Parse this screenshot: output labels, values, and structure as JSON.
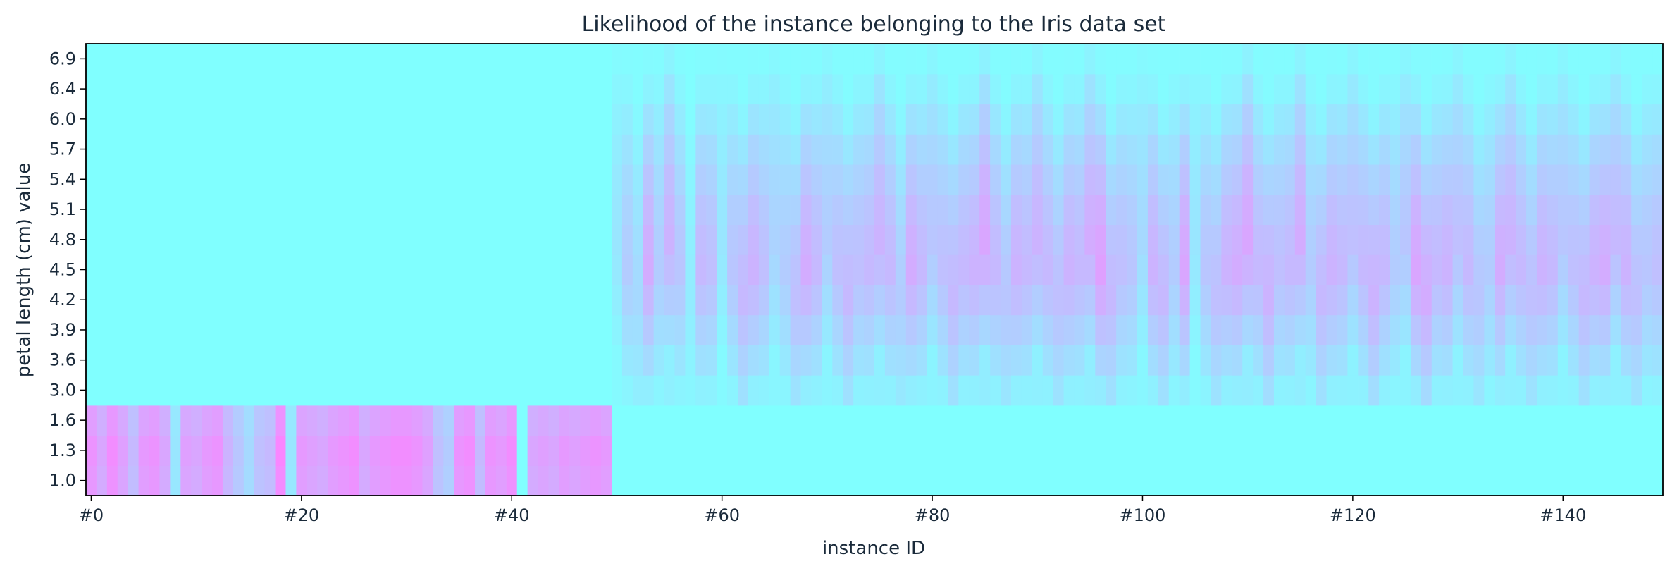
{
  "chart_data": {
    "type": "heatmap",
    "title": "Likelihood of the instance belonging to the Iris data set",
    "xlabel": "instance ID",
    "ylabel": "petal length (cm) value",
    "x_count": 150,
    "x_tick_labels": [
      {
        "index": 0,
        "label": "#0"
      },
      {
        "index": 20,
        "label": "#20"
      },
      {
        "index": 40,
        "label": "#40"
      },
      {
        "index": 60,
        "label": "#60"
      },
      {
        "index": 80,
        "label": "#80"
      },
      {
        "index": 100,
        "label": "#100"
      },
      {
        "index": 120,
        "label": "#120"
      },
      {
        "index": 140,
        "label": "#140"
      }
    ],
    "y_tick_labels": [
      "1.0",
      "1.3",
      "1.6",
      "3.0",
      "3.6",
      "3.9",
      "4.2",
      "4.5",
      "4.8",
      "5.1",
      "5.4",
      "5.7",
      "6.0",
      "6.4",
      "6.9"
    ],
    "colormap": {
      "low": "#80ffff",
      "high": "#ff80ff",
      "name": "cool"
    },
    "grid": false,
    "regions": [
      {
        "instances": [
          0,
          49
        ],
        "petal_length_range": [
          1.0,
          1.9
        ],
        "likelihood": "high"
      },
      {
        "instances": [
          50,
          149
        ],
        "petal_length_range": [
          3.0,
          6.9
        ],
        "likelihood": "high"
      }
    ],
    "instance_peak_likelihood": [
      0.85,
      0.7,
      0.9,
      0.75,
      0.55,
      0.8,
      0.85,
      0.7,
      0.2,
      0.75,
      0.7,
      0.8,
      0.85,
      0.6,
      0.45,
      0.3,
      0.5,
      0.55,
      0.95,
      0.2,
      0.8,
      0.75,
      0.7,
      0.8,
      0.85,
      0.9,
      0.7,
      0.8,
      0.85,
      0.9,
      0.9,
      0.85,
      0.75,
      0.5,
      0.4,
      0.85,
      0.9,
      0.55,
      0.85,
      0.8,
      0.9,
      0.0,
      0.7,
      0.75,
      0.7,
      0.8,
      0.75,
      0.8,
      0.85,
      0.8,
      0.2,
      0.4,
      0.3,
      0.65,
      0.4,
      0.6,
      0.45,
      0.15,
      0.55,
      0.5,
      0.2,
      0.45,
      0.55,
      0.6,
      0.5,
      0.35,
      0.4,
      0.5,
      0.65,
      0.55,
      0.4,
      0.5,
      0.55,
      0.5,
      0.55,
      0.6,
      0.55,
      0.4,
      0.65,
      0.55,
      0.45,
      0.5,
      0.55,
      0.55,
      0.6,
      0.7,
      0.55,
      0.45,
      0.6,
      0.55,
      0.6,
      0.55,
      0.5,
      0.6,
      0.55,
      0.65,
      0.75,
      0.55,
      0.5,
      0.45,
      0.3,
      0.6,
      0.55,
      0.4,
      0.7,
      0.2,
      0.45,
      0.5,
      0.6,
      0.65,
      0.7,
      0.55,
      0.6,
      0.5,
      0.55,
      0.65,
      0.4,
      0.55,
      0.6,
      0.55,
      0.5,
      0.55,
      0.6,
      0.55,
      0.4,
      0.45,
      0.7,
      0.65,
      0.55,
      0.6,
      0.5,
      0.55,
      0.45,
      0.4,
      0.65,
      0.6,
      0.55,
      0.5,
      0.6,
      0.55,
      0.45,
      0.5,
      0.55,
      0.6,
      0.65,
      0.55,
      0.6,
      0.5,
      0.45,
      0.5
    ]
  }
}
